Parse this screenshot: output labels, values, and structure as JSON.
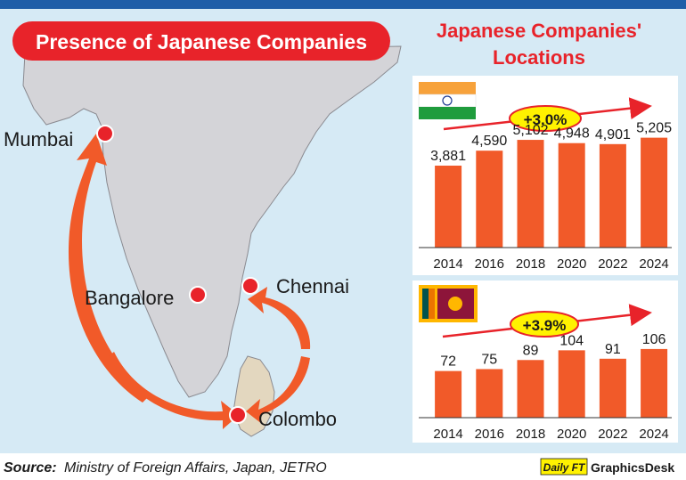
{
  "title": "Presence of Japanese Companies",
  "side_title_line1": "Japanese Companies'",
  "side_title_line2": "Locations",
  "cities": [
    "Mumbai",
    "Bangalore",
    "Chennai",
    "Colombo"
  ],
  "source": {
    "label": "Source:",
    "text": "Ministry of Foreign Affairs, Japan, JETRO"
  },
  "credit": {
    "logo_text": "Daily FT",
    "desk": "GraphicsDesk"
  },
  "colors": {
    "background": "#d6eaf5",
    "top_band": "#1f5ea8",
    "title_pill": "#e8232a",
    "bar": "#f15a29",
    "land": "#d4d4d8",
    "marker": "#e8232a",
    "trend": "#e8232a",
    "growth_badge": "#fff200"
  },
  "chart_data": [
    {
      "type": "bar",
      "country": "India",
      "flag_icon": "india-flag-icon",
      "growth_label": "+3.0%",
      "categories": [
        "2014",
        "2016",
        "2018",
        "2020",
        "2022",
        "2024"
      ],
      "values": [
        3881,
        4590,
        5102,
        4948,
        4901,
        5205
      ],
      "value_labels": [
        "3,881",
        "4,590",
        "5,102",
        "4,948",
        "4,901",
        "5,205"
      ],
      "ylim": [
        0,
        5400
      ],
      "grid": false
    },
    {
      "type": "bar",
      "country": "Sri Lanka",
      "flag_icon": "sri-lanka-flag-icon",
      "growth_label": "+3.9%",
      "categories": [
        "2014",
        "2016",
        "2018",
        "2020",
        "2022",
        "2024"
      ],
      "values": [
        72,
        75,
        89,
        104,
        91,
        106
      ],
      "value_labels": [
        "72",
        "75",
        "89",
        "104",
        "91",
        "106"
      ],
      "ylim": [
        0,
        110
      ],
      "grid": false
    }
  ]
}
